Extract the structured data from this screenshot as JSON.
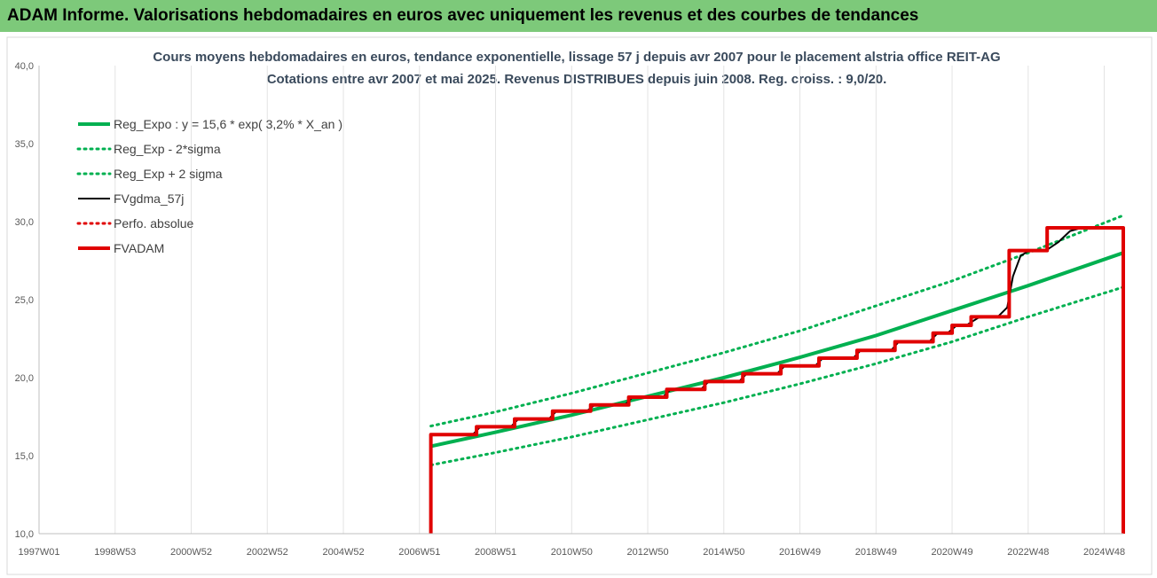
{
  "window": {
    "title": "ADAM Informe. Valorisations hebdomadaires en euros avec uniquement les revenus et des courbes de tendances"
  },
  "chart_data": {
    "type": "line",
    "title": "Cours moyens hebdomadaires en euros, tendance exponentielle, lissage 57 j depuis avr 2007 pour le placement alstria office REIT-AG",
    "subtitle": "Cotations entre avr 2007 et mai 2025.  Revenus DISTRIBUES depuis juin 2008. Reg. croiss. : 9,0/20.",
    "xlabel": "",
    "ylabel": "",
    "xlim": [
      1997.0,
      2025.5
    ],
    "ylim": [
      10,
      40
    ],
    "y_ticks": [
      10,
      15,
      20,
      25,
      30,
      35,
      40
    ],
    "y_tick_labels": [
      "10,0",
      "15,0",
      "20,0",
      "25,0",
      "30,0",
      "35,0",
      "40,0"
    ],
    "x_ticks": [
      {
        "label": "1997W01",
        "x": 1997.0
      },
      {
        "label": "1998W53",
        "x": 1999.0
      },
      {
        "label": "2000W52",
        "x": 2001.0
      },
      {
        "label": "2002W52",
        "x": 2003.0
      },
      {
        "label": "2004W52",
        "x": 2005.0
      },
      {
        "label": "2006W51",
        "x": 2007.0
      },
      {
        "label": "2008W51",
        "x": 2009.0
      },
      {
        "label": "2010W50",
        "x": 2011.0
      },
      {
        "label": "2012W50",
        "x": 2013.0
      },
      {
        "label": "2014W50",
        "x": 2015.0
      },
      {
        "label": "2016W49",
        "x": 2017.0
      },
      {
        "label": "2018W49",
        "x": 2019.0
      },
      {
        "label": "2020W49",
        "x": 2021.0
      },
      {
        "label": "2022W48",
        "x": 2023.0
      },
      {
        "label": "2024W48",
        "x": 2025.0
      }
    ],
    "grid": "vertical",
    "legend_position": "top-left",
    "colors": {
      "green": "#00b050",
      "black": "#000000",
      "red": "#e00000"
    },
    "series": [
      {
        "name": "Reg_Expo : y = 15,6 * exp( 3,2% *  X_an )",
        "style": "solid-thick",
        "color": "#00b050",
        "points": [
          [
            2007.3,
            15.6
          ],
          [
            2009.0,
            16.5
          ],
          [
            2011.0,
            17.6
          ],
          [
            2013.0,
            18.8
          ],
          [
            2015.0,
            20.0
          ],
          [
            2017.0,
            21.3
          ],
          [
            2019.0,
            22.7
          ],
          [
            2021.0,
            24.3
          ],
          [
            2023.0,
            25.9
          ],
          [
            2025.5,
            28.0
          ]
        ]
      },
      {
        "name": "Reg_Exp - 2*sigma",
        "style": "dotted",
        "color": "#00b050",
        "points": [
          [
            2007.3,
            14.4
          ],
          [
            2009.0,
            15.2
          ],
          [
            2011.0,
            16.2
          ],
          [
            2013.0,
            17.3
          ],
          [
            2015.0,
            18.4
          ],
          [
            2017.0,
            19.6
          ],
          [
            2019.0,
            20.9
          ],
          [
            2021.0,
            22.3
          ],
          [
            2023.0,
            23.9
          ],
          [
            2025.5,
            25.8
          ]
        ]
      },
      {
        "name": "Reg_Exp + 2 sigma",
        "style": "dotted",
        "color": "#00b050",
        "points": [
          [
            2007.3,
            16.9
          ],
          [
            2009.0,
            17.8
          ],
          [
            2011.0,
            19.0
          ],
          [
            2013.0,
            20.3
          ],
          [
            2015.0,
            21.6
          ],
          [
            2017.0,
            23.0
          ],
          [
            2019.0,
            24.6
          ],
          [
            2021.0,
            26.2
          ],
          [
            2023.0,
            28.0
          ],
          [
            2025.5,
            30.4
          ]
        ]
      },
      {
        "name": "FVgdma_57j",
        "style": "solid-thin",
        "color": "#000000",
        "points": [
          [
            2007.3,
            16.35
          ],
          [
            2008.4,
            16.35
          ],
          [
            2008.6,
            16.85
          ],
          [
            2009.4,
            16.85
          ],
          [
            2009.6,
            17.35
          ],
          [
            2010.4,
            17.35
          ],
          [
            2010.6,
            17.85
          ],
          [
            2011.4,
            17.85
          ],
          [
            2011.6,
            18.25
          ],
          [
            2012.4,
            18.25
          ],
          [
            2012.6,
            18.75
          ],
          [
            2013.4,
            18.75
          ],
          [
            2013.6,
            19.25
          ],
          [
            2014.4,
            19.25
          ],
          [
            2014.6,
            19.75
          ],
          [
            2015.4,
            19.75
          ],
          [
            2015.6,
            20.25
          ],
          [
            2016.4,
            20.25
          ],
          [
            2016.6,
            20.75
          ],
          [
            2017.4,
            20.75
          ],
          [
            2017.6,
            21.25
          ],
          [
            2018.4,
            21.25
          ],
          [
            2018.6,
            21.75
          ],
          [
            2019.4,
            21.75
          ],
          [
            2019.6,
            22.3
          ],
          [
            2020.4,
            22.3
          ],
          [
            2020.6,
            22.8
          ],
          [
            2020.9,
            22.9
          ],
          [
            2021.1,
            23.3
          ],
          [
            2021.4,
            23.4
          ],
          [
            2021.7,
            23.85
          ],
          [
            2022.2,
            23.9
          ],
          [
            2022.45,
            24.5
          ],
          [
            2022.6,
            26.5
          ],
          [
            2022.8,
            27.8
          ],
          [
            2023.0,
            28.1
          ],
          [
            2023.5,
            28.2
          ],
          [
            2023.8,
            28.7
          ],
          [
            2024.1,
            29.4
          ],
          [
            2024.4,
            29.6
          ],
          [
            2025.5,
            29.6
          ]
        ]
      },
      {
        "name": "Perfo. absolue",
        "style": "dotted",
        "color": "#e00000",
        "points": []
      },
      {
        "name": "FVADAM",
        "style": "solid-thick",
        "color": "#e00000",
        "points": [
          [
            2007.3,
            10.0
          ],
          [
            2007.3,
            16.35
          ],
          [
            2008.5,
            16.35
          ],
          [
            2008.5,
            16.85
          ],
          [
            2009.5,
            16.85
          ],
          [
            2009.5,
            17.35
          ],
          [
            2010.5,
            17.35
          ],
          [
            2010.5,
            17.85
          ],
          [
            2011.5,
            17.85
          ],
          [
            2011.5,
            18.25
          ],
          [
            2012.5,
            18.25
          ],
          [
            2012.5,
            18.75
          ],
          [
            2013.5,
            18.75
          ],
          [
            2013.5,
            19.25
          ],
          [
            2014.5,
            19.25
          ],
          [
            2014.5,
            19.75
          ],
          [
            2015.5,
            19.75
          ],
          [
            2015.5,
            20.25
          ],
          [
            2016.5,
            20.25
          ],
          [
            2016.5,
            20.75
          ],
          [
            2017.5,
            20.75
          ],
          [
            2017.5,
            21.25
          ],
          [
            2018.5,
            21.25
          ],
          [
            2018.5,
            21.75
          ],
          [
            2019.5,
            21.75
          ],
          [
            2019.5,
            22.3
          ],
          [
            2020.5,
            22.3
          ],
          [
            2020.5,
            22.85
          ],
          [
            2021.0,
            22.85
          ],
          [
            2021.0,
            23.35
          ],
          [
            2021.5,
            23.35
          ],
          [
            2021.5,
            23.9
          ],
          [
            2022.5,
            23.9
          ],
          [
            2022.5,
            28.15
          ],
          [
            2023.5,
            28.15
          ],
          [
            2023.5,
            29.6
          ],
          [
            2025.5,
            29.6
          ],
          [
            2025.5,
            10.0
          ]
        ]
      }
    ]
  }
}
